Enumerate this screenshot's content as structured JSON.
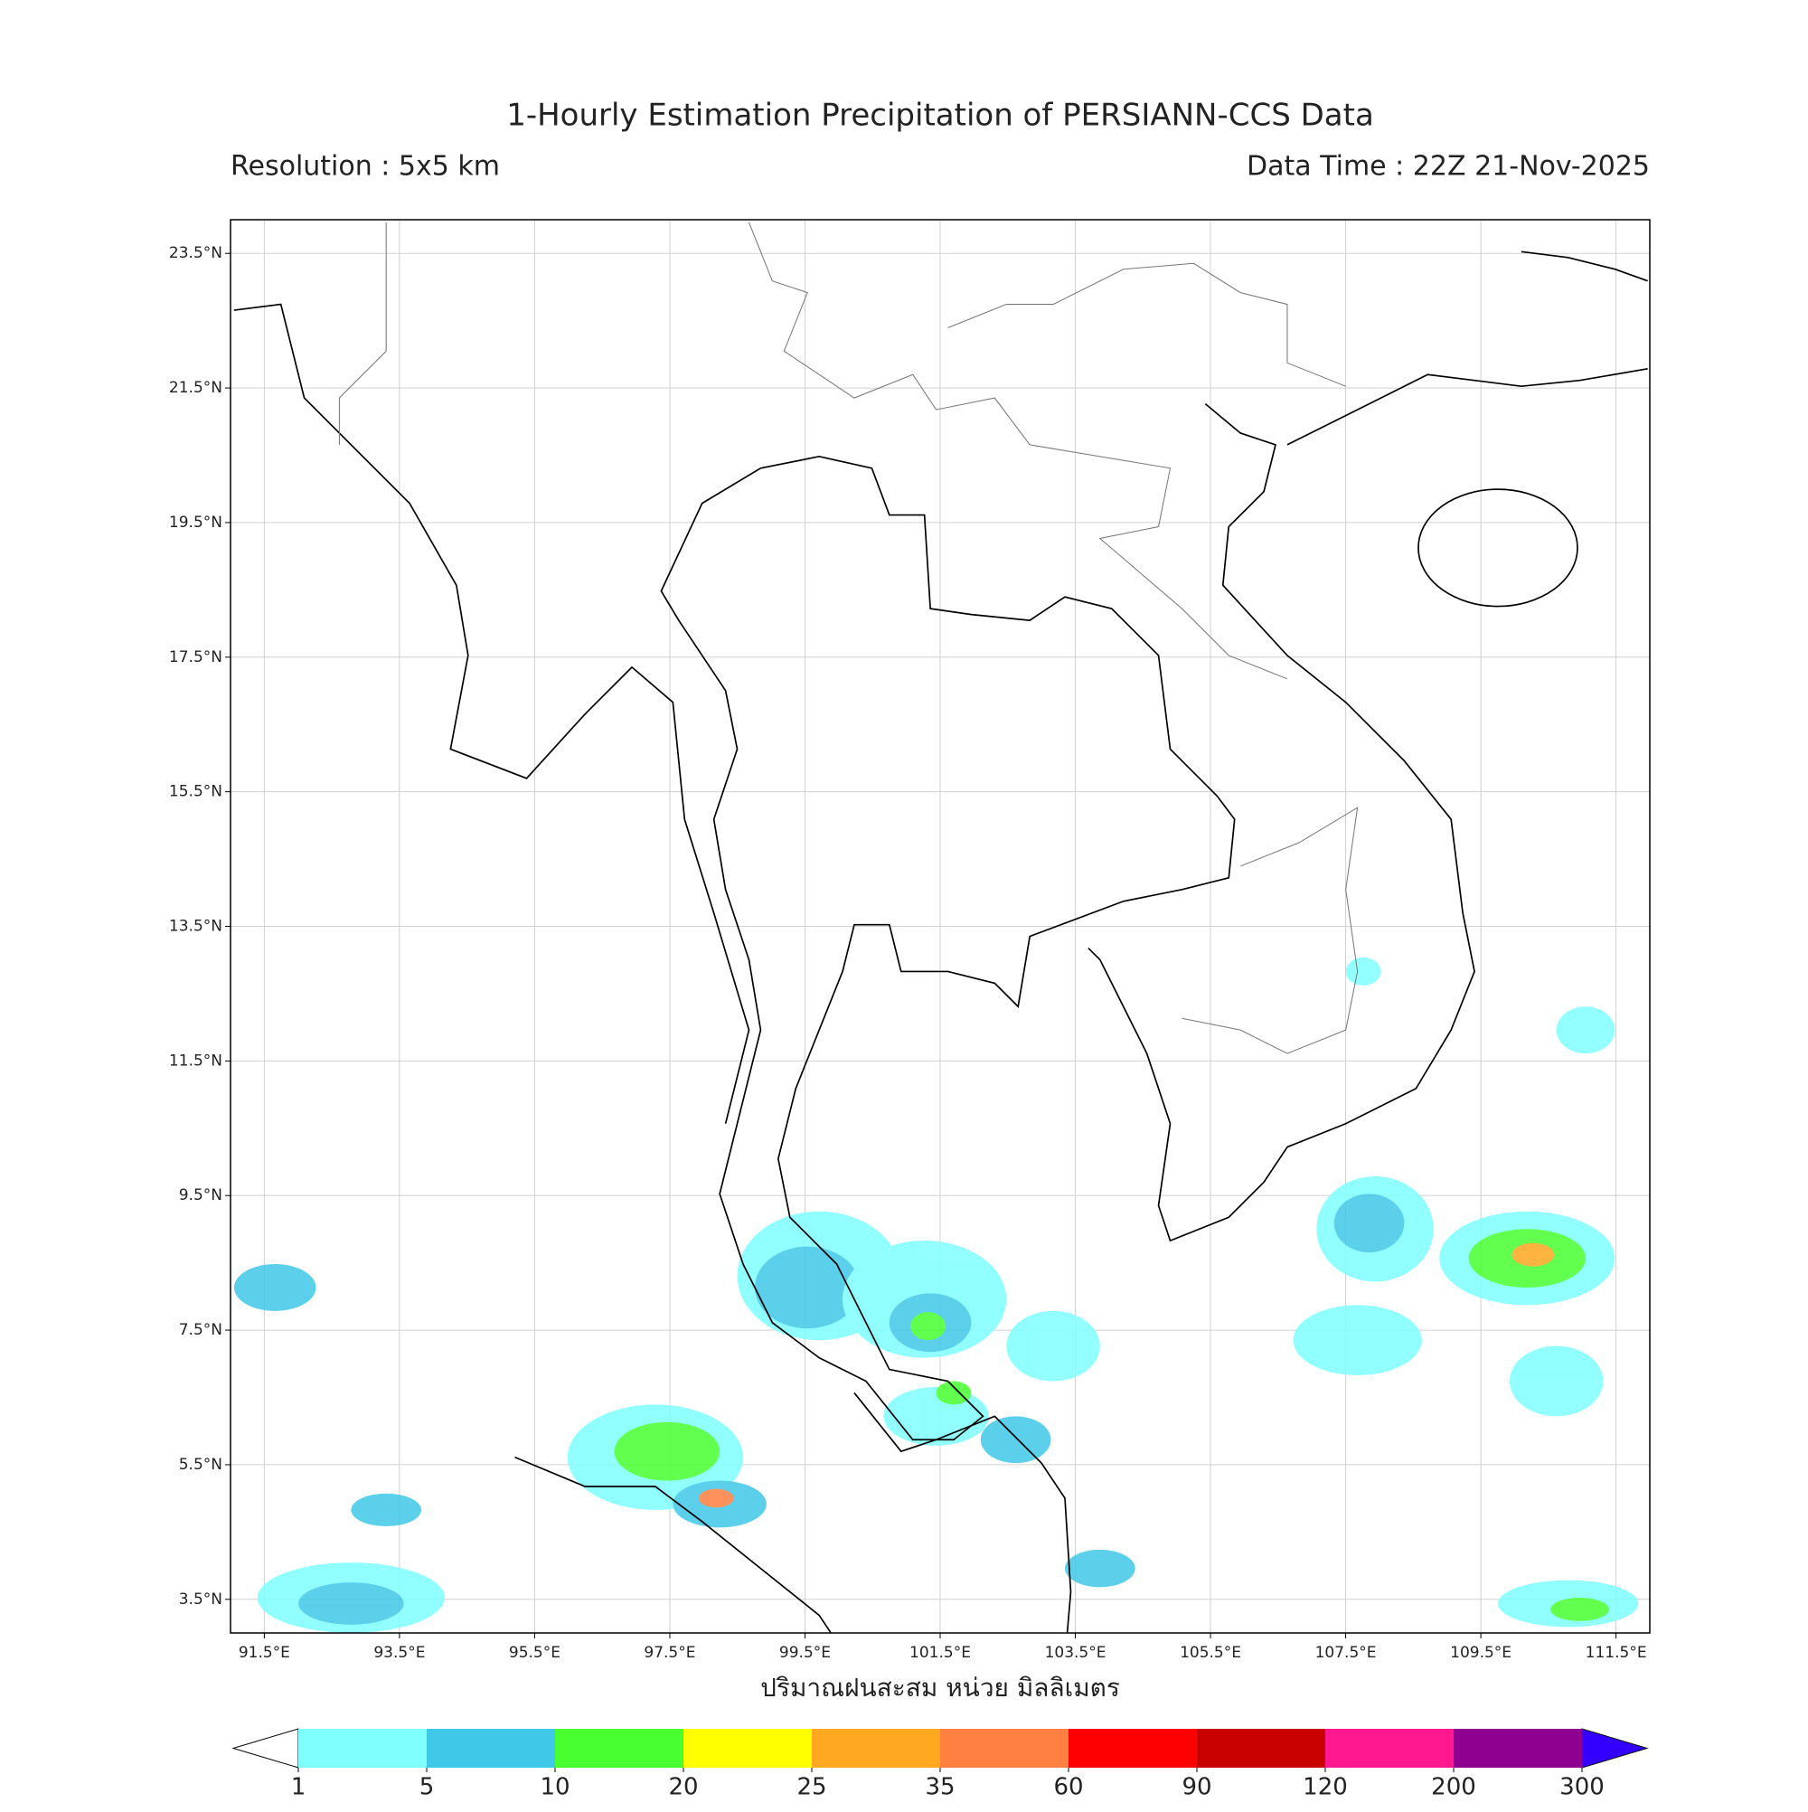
{
  "chart_data": {
    "type": "map",
    "title": "1-Hourly Estimation Precipitation of PERSIANN-CCS Data",
    "subtitle_left": "Resolution : 5x5 km",
    "subtitle_right": "Data Time : 22Z 21-Nov-2025",
    "xlabel": "ปริมาณฝนสะสม หน่วย มิลลิเมตร",
    "xlim": [
      91,
      112
    ],
    "ylim": [
      3,
      24
    ],
    "grid": true,
    "xticks": [
      {
        "value": 91.5,
        "label": "91.5°E"
      },
      {
        "value": 93.5,
        "label": "93.5°E"
      },
      {
        "value": 95.5,
        "label": "95.5°E"
      },
      {
        "value": 97.5,
        "label": "97.5°E"
      },
      {
        "value": 99.5,
        "label": "99.5°E"
      },
      {
        "value": 101.5,
        "label": "101.5°E"
      },
      {
        "value": 103.5,
        "label": "103.5°E"
      },
      {
        "value": 105.5,
        "label": "105.5°E"
      },
      {
        "value": 107.5,
        "label": "107.5°E"
      },
      {
        "value": 109.5,
        "label": "109.5°E"
      },
      {
        "value": 111.5,
        "label": "111.5°E"
      }
    ],
    "yticks": [
      {
        "value": 23.5,
        "label": "23.5°N"
      },
      {
        "value": 21.5,
        "label": "21.5°N"
      },
      {
        "value": 19.5,
        "label": "19.5°N"
      },
      {
        "value": 17.5,
        "label": "17.5°N"
      },
      {
        "value": 15.5,
        "label": "15.5°N"
      },
      {
        "value": 13.5,
        "label": "13.5°N"
      },
      {
        "value": 11.5,
        "label": "11.5°N"
      },
      {
        "value": 9.5,
        "label": "9.5°N"
      },
      {
        "value": 7.5,
        "label": "7.5°N"
      },
      {
        "value": 5.5,
        "label": "5.5°N"
      },
      {
        "value": 3.5,
        "label": "3.5°N"
      }
    ],
    "colorbar": {
      "levels": [
        1,
        5,
        10,
        20,
        25,
        35,
        60,
        90,
        120,
        200,
        300
      ],
      "colors": [
        "#80ffff",
        "#40c8e8",
        "#48ff30",
        "#ffff00",
        "#ffa820",
        "#ff8040",
        "#ff0000",
        "#c80000",
        "#ff1890",
        "#900090"
      ],
      "under_color": "#ffffff",
      "over_color": "#3300ff"
    }
  }
}
